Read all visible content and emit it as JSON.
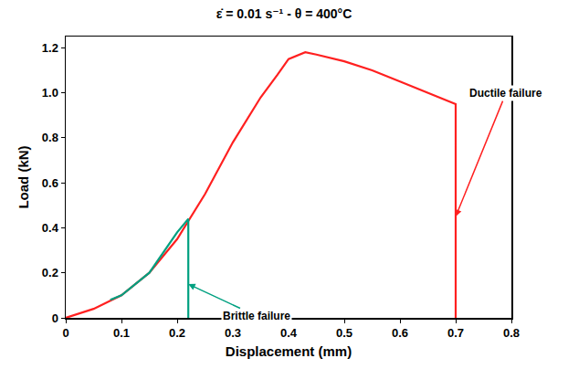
{
  "chart_data": {
    "type": "line",
    "title": "ε̇ = 0.01 s⁻¹ - θ = 400°C",
    "x_label": "Displacement (mm)",
    "y_label": "Load (kN)",
    "xlim": [
      0,
      0.8
    ],
    "ylim": [
      0,
      1.25
    ],
    "xticks": [
      0,
      0.1,
      0.2,
      0.3,
      0.4,
      0.5,
      0.6,
      0.7,
      0.8
    ],
    "yticks": [
      0,
      0.2,
      0.4,
      0.6,
      0.8,
      {
        "value": 1,
        "label": "1.0"
      },
      1.2
    ],
    "grid": false,
    "series": [
      {
        "color": "#ff2020",
        "x": [
          0,
          0.05,
          0.1,
          0.15,
          0.2,
          0.25,
          0.3,
          0.35,
          0.38,
          0.4,
          0.43,
          0.45,
          0.5,
          0.55,
          0.6,
          0.65,
          0.68,
          0.7,
          0.7
        ],
        "values": [
          0,
          0.04,
          0.1,
          0.2,
          0.35,
          0.55,
          0.78,
          0.98,
          1.08,
          1.15,
          1.18,
          1.17,
          1.14,
          1.1,
          1.05,
          1.0,
          0.97,
          0.95,
          0
        ]
      },
      {
        "color": "#00a080",
        "x": [
          0.08,
          0.1,
          0.15,
          0.2,
          0.22,
          0.22
        ],
        "values": [
          0.08,
          0.1,
          0.2,
          0.38,
          0.44,
          0
        ]
      }
    ],
    "annotations": [
      "Ductile failure",
      "Brittle failure"
    ]
  }
}
